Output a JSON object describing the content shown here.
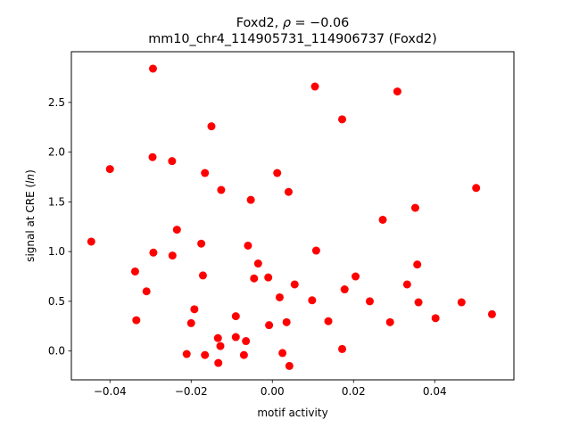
{
  "chart_data": {
    "type": "scatter",
    "title_line1_prefix": "Foxd2, ",
    "title_rho_symbol": "ρ",
    "title_rho_value": " = −0.06",
    "title_line2": "mm10_chr4_114905731_114906737 (Foxd2)",
    "xlabel": "motif activity",
    "ylabel_prefix": "signal at CRE (",
    "ylabel_italic": "ln",
    "ylabel_suffix": ")",
    "xlim": [
      -0.0495,
      0.0595
    ],
    "ylim": [
      -0.29,
      3.01
    ],
    "xticks": [
      -0.04,
      -0.02,
      0.0,
      0.02,
      0.04
    ],
    "xtick_labels": [
      "−0.04",
      "−0.02",
      "0.00",
      "0.02",
      "0.04"
    ],
    "yticks": [
      0.0,
      0.5,
      1.0,
      1.5,
      2.0,
      2.5
    ],
    "ytick_labels": [
      "0.0",
      "0.5",
      "1.0",
      "1.5",
      "2.0",
      "2.5"
    ],
    "marker_color": "#ff0000",
    "points": [
      {
        "x": -0.0446,
        "y": 1.1
      },
      {
        "x": -0.04,
        "y": 1.83
      },
      {
        "x": -0.0338,
        "y": 0.8
      },
      {
        "x": -0.0335,
        "y": 0.31
      },
      {
        "x": -0.031,
        "y": 0.6
      },
      {
        "x": -0.0294,
        "y": 2.84
      },
      {
        "x": -0.0295,
        "y": 1.95
      },
      {
        "x": -0.0293,
        "y": 0.99
      },
      {
        "x": -0.0247,
        "y": 1.91
      },
      {
        "x": -0.0246,
        "y": 0.96
      },
      {
        "x": -0.0235,
        "y": 1.22
      },
      {
        "x": -0.0211,
        "y": -0.03
      },
      {
        "x": -0.02,
        "y": 0.28
      },
      {
        "x": -0.0192,
        "y": 0.42
      },
      {
        "x": -0.0175,
        "y": 1.08
      },
      {
        "x": -0.0171,
        "y": 0.76
      },
      {
        "x": -0.0166,
        "y": 1.79
      },
      {
        "x": -0.0166,
        "y": -0.04
      },
      {
        "x": -0.015,
        "y": 2.26
      },
      {
        "x": -0.0134,
        "y": 0.13
      },
      {
        "x": -0.0133,
        "y": -0.12
      },
      {
        "x": -0.0128,
        "y": 0.05
      },
      {
        "x": -0.0126,
        "y": 1.62
      },
      {
        "x": -0.009,
        "y": 0.35
      },
      {
        "x": -0.009,
        "y": 0.14
      },
      {
        "x": -0.007,
        "y": -0.04
      },
      {
        "x": -0.0065,
        "y": 0.1
      },
      {
        "x": -0.006,
        "y": 1.06
      },
      {
        "x": -0.0053,
        "y": 1.52
      },
      {
        "x": -0.0045,
        "y": 0.73
      },
      {
        "x": -0.0035,
        "y": 0.88
      },
      {
        "x": -0.001,
        "y": 0.74
      },
      {
        "x": -0.0008,
        "y": 0.26
      },
      {
        "x": 0.0012,
        "y": 1.79
      },
      {
        "x": 0.0018,
        "y": 0.54
      },
      {
        "x": 0.0025,
        "y": -0.02
      },
      {
        "x": 0.0035,
        "y": 0.29
      },
      {
        "x": 0.004,
        "y": 1.6
      },
      {
        "x": 0.0042,
        "y": -0.15
      },
      {
        "x": 0.0055,
        "y": 0.67
      },
      {
        "x": 0.0098,
        "y": 0.51
      },
      {
        "x": 0.0105,
        "y": 2.66
      },
      {
        "x": 0.0108,
        "y": 1.01
      },
      {
        "x": 0.0138,
        "y": 0.3
      },
      {
        "x": 0.0172,
        "y": 2.33
      },
      {
        "x": 0.0172,
        "y": 0.02
      },
      {
        "x": 0.0178,
        "y": 0.62
      },
      {
        "x": 0.0205,
        "y": 0.75
      },
      {
        "x": 0.024,
        "y": 0.5
      },
      {
        "x": 0.0272,
        "y": 1.32
      },
      {
        "x": 0.029,
        "y": 0.29
      },
      {
        "x": 0.0308,
        "y": 2.61
      },
      {
        "x": 0.0332,
        "y": 0.67
      },
      {
        "x": 0.0352,
        "y": 1.44
      },
      {
        "x": 0.0357,
        "y": 0.87
      },
      {
        "x": 0.036,
        "y": 0.49
      },
      {
        "x": 0.0402,
        "y": 0.33
      },
      {
        "x": 0.0466,
        "y": 0.49
      },
      {
        "x": 0.0502,
        "y": 1.64
      },
      {
        "x": 0.0541,
        "y": 0.37
      }
    ]
  }
}
